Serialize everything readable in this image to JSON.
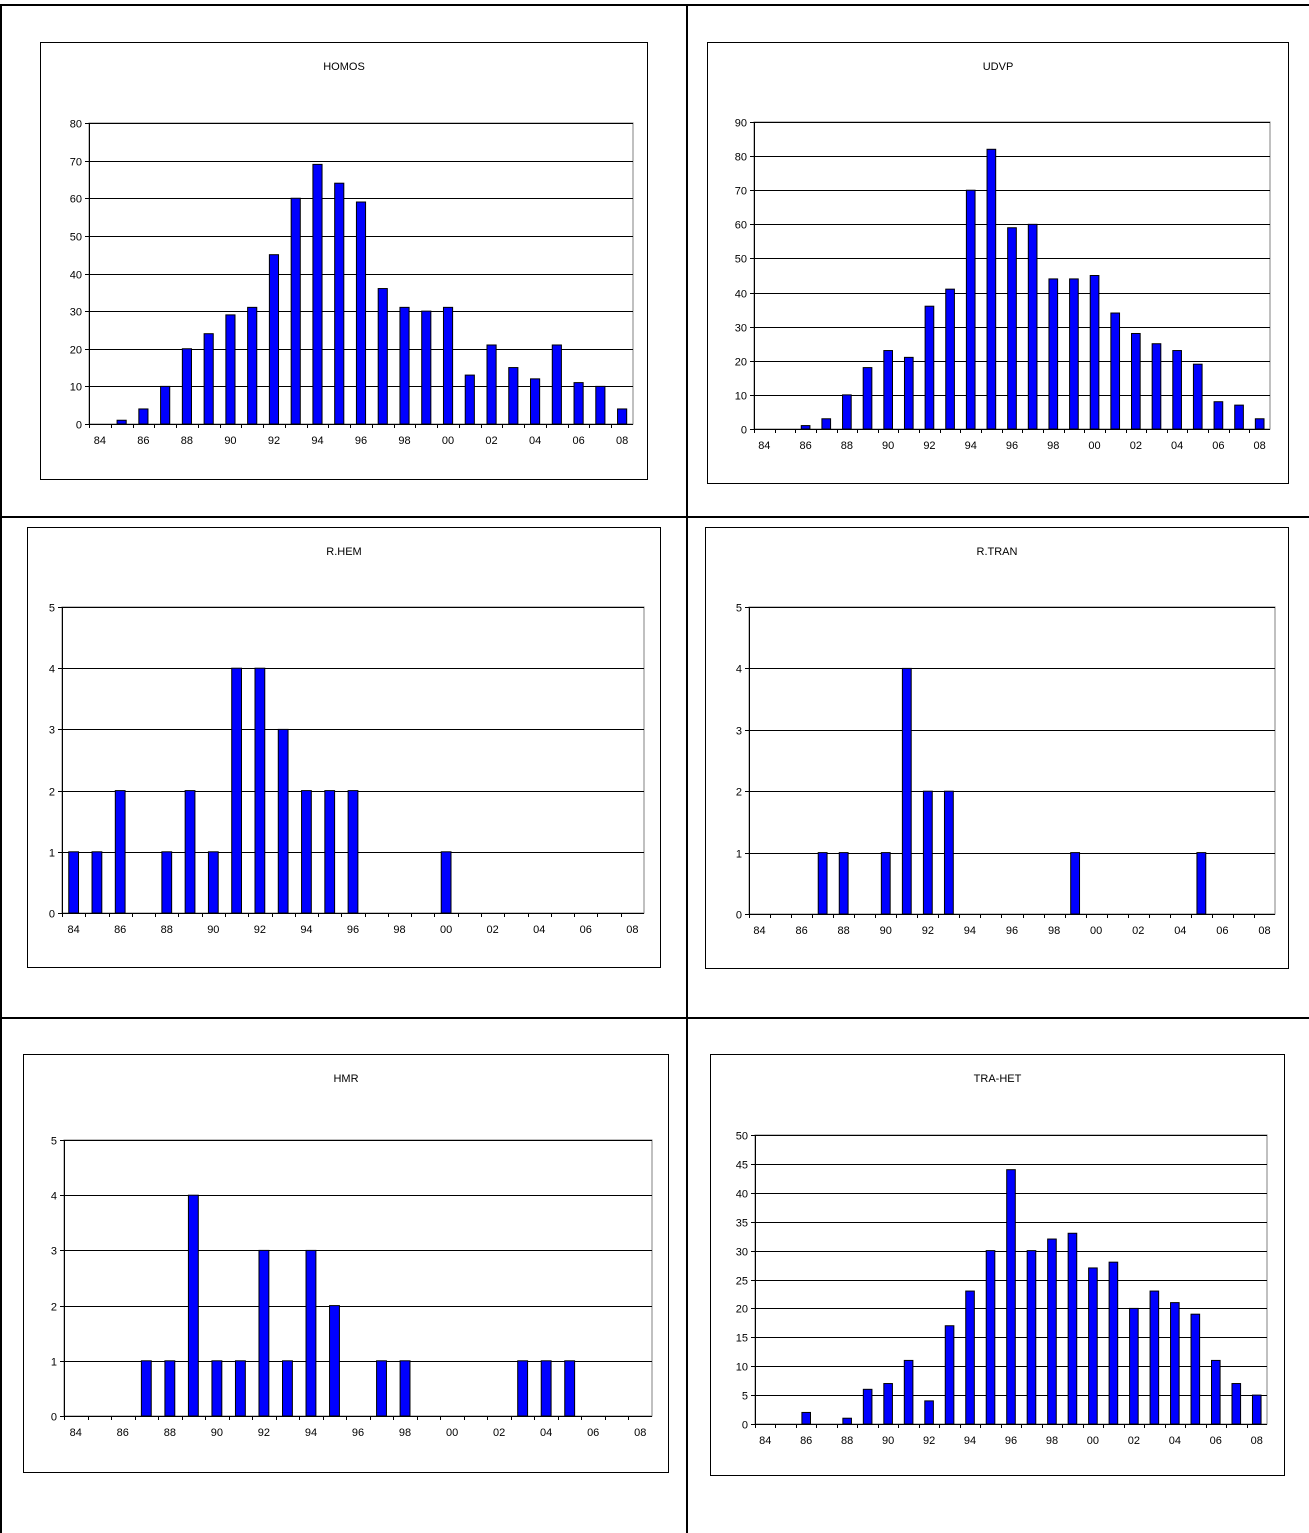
{
  "x_ticks": [
    "84",
    "86",
    "88",
    "90",
    "92",
    "94",
    "96",
    "98",
    "00",
    "02",
    "04",
    "06",
    "08"
  ],
  "colors": {
    "bar": "#0000ff",
    "bar_edge": "#000000",
    "grid": "#000000",
    "plot_bg": "#ffffff"
  },
  "charts": [
    {
      "type": "bar",
      "title": "HOMOS",
      "categories": [
        "84",
        "85",
        "86",
        "87",
        "88",
        "89",
        "90",
        "91",
        "92",
        "93",
        "94",
        "95",
        "96",
        "97",
        "98",
        "99",
        "00",
        "01",
        "02",
        "03",
        "04",
        "05",
        "06",
        "07",
        "08"
      ],
      "values": [
        0,
        1,
        4,
        10,
        20,
        24,
        29,
        31,
        45,
        60,
        69,
        64,
        59,
        36,
        31,
        30,
        31,
        13,
        21,
        15,
        12,
        21,
        11,
        10,
        4
      ],
      "ylim": [
        0,
        80
      ],
      "yticks": [
        0,
        10,
        20,
        30,
        40,
        50,
        60,
        70,
        80
      ],
      "grid": true
    },
    {
      "type": "bar",
      "title": "UDVP",
      "categories": [
        "84",
        "85",
        "86",
        "87",
        "88",
        "89",
        "90",
        "91",
        "92",
        "93",
        "94",
        "95",
        "96",
        "97",
        "98",
        "99",
        "00",
        "01",
        "02",
        "03",
        "04",
        "05",
        "06",
        "07",
        "08"
      ],
      "values": [
        0,
        0,
        1,
        3,
        10,
        18,
        23,
        21,
        36,
        41,
        70,
        82,
        59,
        60,
        44,
        44,
        45,
        34,
        28,
        25,
        23,
        19,
        8,
        7,
        3
      ],
      "ylim": [
        0,
        90
      ],
      "yticks": [
        0,
        10,
        20,
        30,
        40,
        50,
        60,
        70,
        80,
        90
      ],
      "grid": true
    },
    {
      "type": "bar",
      "title": "R.HEM",
      "categories": [
        "84",
        "85",
        "86",
        "87",
        "88",
        "89",
        "90",
        "91",
        "92",
        "93",
        "94",
        "95",
        "96",
        "97",
        "98",
        "99",
        "00",
        "01",
        "02",
        "03",
        "04",
        "05",
        "06",
        "07",
        "08"
      ],
      "values": [
        1,
        1,
        2,
        0,
        1,
        2,
        1,
        4,
        4,
        3,
        2,
        2,
        2,
        0,
        0,
        0,
        1,
        0,
        0,
        0,
        0,
        0,
        0,
        0,
        0
      ],
      "ylim": [
        0,
        5
      ],
      "yticks": [
        0,
        1,
        2,
        3,
        4,
        5
      ],
      "grid": true
    },
    {
      "type": "bar",
      "title": "R.TRAN",
      "categories": [
        "84",
        "85",
        "86",
        "87",
        "88",
        "89",
        "90",
        "91",
        "92",
        "93",
        "94",
        "95",
        "96",
        "97",
        "98",
        "99",
        "00",
        "01",
        "02",
        "03",
        "04",
        "05",
        "06",
        "07",
        "08"
      ],
      "values": [
        0,
        0,
        0,
        1,
        1,
        0,
        1,
        4,
        2,
        2,
        0,
        0,
        0,
        0,
        0,
        1,
        0,
        0,
        0,
        0,
        0,
        1,
        0,
        0,
        0
      ],
      "ylim": [
        0,
        5
      ],
      "yticks": [
        0,
        1,
        2,
        3,
        4,
        5
      ],
      "grid": true
    },
    {
      "type": "bar",
      "title": "HMR",
      "categories": [
        "84",
        "85",
        "86",
        "87",
        "88",
        "89",
        "90",
        "91",
        "92",
        "93",
        "94",
        "95",
        "96",
        "97",
        "98",
        "99",
        "00",
        "01",
        "02",
        "03",
        "04",
        "05",
        "06",
        "07",
        "08"
      ],
      "values": [
        0,
        0,
        0,
        1,
        1,
        4,
        1,
        1,
        3,
        1,
        3,
        2,
        0,
        1,
        1,
        0,
        0,
        0,
        0,
        1,
        1,
        1,
        0,
        0,
        0
      ],
      "ylim": [
        0,
        5
      ],
      "yticks": [
        0,
        1,
        2,
        3,
        4,
        5
      ],
      "grid": true
    },
    {
      "type": "bar",
      "title": "TRA-HET",
      "categories": [
        "84",
        "85",
        "86",
        "87",
        "88",
        "89",
        "90",
        "91",
        "92",
        "93",
        "94",
        "95",
        "96",
        "97",
        "98",
        "99",
        "00",
        "01",
        "02",
        "03",
        "04",
        "05",
        "06",
        "07",
        "08"
      ],
      "values": [
        0,
        0,
        2,
        0,
        1,
        6,
        7,
        11,
        4,
        17,
        23,
        30,
        44,
        30,
        32,
        33,
        27,
        28,
        20,
        23,
        21,
        19,
        11,
        7,
        5
      ],
      "ylim": [
        0,
        50
      ],
      "yticks": [
        0,
        5,
        10,
        15,
        20,
        25,
        30,
        35,
        40,
        45,
        50
      ],
      "grid": true
    }
  ]
}
